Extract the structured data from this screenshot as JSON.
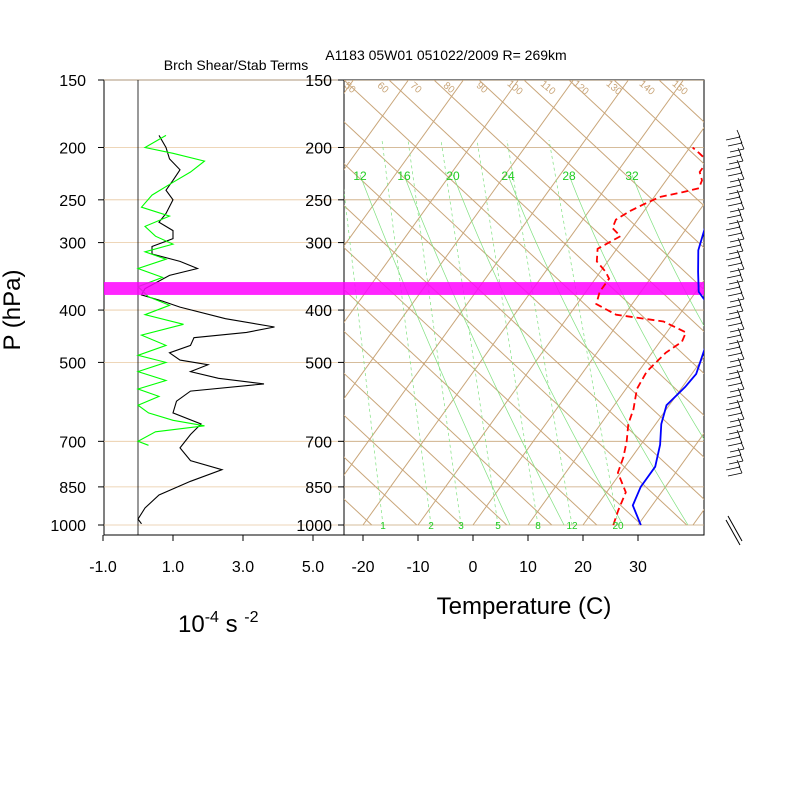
{
  "chart_data": [
    {
      "type": "line",
      "title": "Brch Shear/Stab Terms",
      "xlabel_base": "10",
      "xlabel_exp1": "-4",
      "xlabel_unit": " s ",
      "xlabel_exp2": "-2",
      "ylabel": "P (hPa)",
      "x_ticks": [
        "-1.0",
        "1.0",
        "3.0",
        "5.0"
      ],
      "xlim": [
        -1.0,
        5.0
      ],
      "y_ticks": [
        "150",
        "200",
        "250",
        "300",
        "400",
        "500",
        "700",
        "850",
        "1000"
      ],
      "y_scale": "log",
      "ylim": [
        1000,
        150
      ],
      "series": [
        {
          "color": "#000000",
          "points": [
            [
              0.6,
              190
            ],
            [
              0.8,
              200
            ],
            [
              0.9,
              210
            ],
            [
              1.2,
              220
            ],
            [
              1.0,
              230
            ],
            [
              0.8,
              240
            ],
            [
              1.0,
              250
            ],
            [
              0.8,
              265
            ],
            [
              0.6,
              275
            ],
            [
              1.0,
              285
            ],
            [
              1.0,
              295
            ],
            [
              0.4,
              305
            ],
            [
              0.4,
              315
            ],
            [
              1.2,
              325
            ],
            [
              1.7,
              335
            ],
            [
              0.9,
              345
            ],
            [
              0.2,
              365
            ],
            [
              0.1,
              375
            ],
            [
              0.7,
              385
            ],
            [
              1.2,
              395
            ],
            [
              2.5,
              415
            ],
            [
              3.9,
              430
            ],
            [
              3.1,
              440
            ],
            [
              1.6,
              450
            ],
            [
              1.5,
              465
            ],
            [
              0.9,
              480
            ],
            [
              1.2,
              495
            ],
            [
              2.0,
              505
            ],
            [
              1.5,
              520
            ],
            [
              2.3,
              535
            ],
            [
              3.6,
              548
            ],
            [
              1.5,
              565
            ],
            [
              1.1,
              590
            ],
            [
              1.0,
              620
            ],
            [
              1.8,
              650
            ],
            [
              1.5,
              680
            ],
            [
              1.2,
              720
            ],
            [
              1.5,
              760
            ],
            [
              2.4,
              790
            ],
            [
              1.5,
              830
            ],
            [
              0.6,
              880
            ],
            [
              0.2,
              930
            ],
            [
              0.0,
              975
            ],
            [
              0.1,
              995
            ]
          ]
        },
        {
          "color": "#00ff00",
          "points": [
            [
              0.8,
              190
            ],
            [
              0.2,
              200
            ],
            [
              1.0,
              205
            ],
            [
              1.9,
              212
            ],
            [
              1.5,
              222
            ],
            [
              1.0,
              232
            ],
            [
              0.4,
              245
            ],
            [
              0.1,
              258
            ],
            [
              0.9,
              268
            ],
            [
              0.2,
              280
            ],
            [
              0.5,
              292
            ],
            [
              1.0,
              302
            ],
            [
              0.2,
              312
            ],
            [
              0.8,
              322
            ],
            [
              0.0,
              335
            ],
            [
              0.7,
              348
            ],
            [
              0.0,
              362
            ],
            [
              0.3,
              378
            ],
            [
              0.9,
              392
            ],
            [
              0.2,
              408
            ],
            [
              1.3,
              425
            ],
            [
              0.1,
              445
            ],
            [
              0.8,
              465
            ],
            [
              0.0,
              485
            ],
            [
              0.8,
              500
            ],
            [
              0.0,
              520
            ],
            [
              0.8,
              540
            ],
            [
              0.0,
              560
            ],
            [
              0.6,
              578
            ],
            [
              0.0,
              600
            ],
            [
              0.3,
              620
            ],
            [
              1.0,
              640
            ],
            [
              1.9,
              655
            ],
            [
              0.5,
              672
            ],
            [
              0.0,
              700
            ],
            [
              0.3,
              712
            ]
          ]
        }
      ]
    },
    {
      "type": "line",
      "title": "A1183 05W01 051022/2009 R= 269km",
      "xlabel": "Temperature (C)",
      "x_ticks": [
        "-20",
        "-10",
        "0",
        "10",
        "20",
        "30"
      ],
      "xlim": [
        -23.5,
        42.5
      ],
      "y_ticks": [
        "150",
        "200",
        "250",
        "300",
        "400",
        "500",
        "700",
        "850",
        "1000"
      ],
      "y_scale": "log",
      "ylim": [
        1000,
        150
      ],
      "skew": "skew-T log-p",
      "mixing_ratio_labels": [
        "1",
        "2",
        "3",
        "5",
        "8",
        "12",
        "20"
      ],
      "theta_e_labels": [
        "12",
        "16",
        "20",
        "24",
        "28",
        "32"
      ],
      "dry_adiabat_labels": [
        "50",
        "60",
        "70",
        "80",
        "90",
        "100",
        "110",
        "120",
        "130",
        "140",
        "150"
      ],
      "highlight_band_hpa": [
        355,
        375
      ],
      "highlight_color": "#ff00ff",
      "series": [
        {
          "name": "",
          "color": "#0000ff",
          "points": [
            [
              30.5,
              1000
            ],
            [
              26.5,
              920
            ],
            [
              25.5,
              850
            ],
            [
              25.5,
              780
            ],
            [
              23.5,
              710
            ],
            [
              21.0,
              650
            ],
            [
              19.5,
              600
            ],
            [
              20.5,
              555
            ],
            [
              20.8,
              525
            ],
            [
              20.0,
              500
            ],
            [
              19.0,
              470
            ],
            [
              19.2,
              455
            ],
            [
              19.5,
              440
            ],
            [
              17.5,
              420
            ],
            [
              15.0,
              398
            ],
            [
              10.5,
              370
            ],
            [
              7.8,
              340
            ],
            [
              5.0,
              310
            ],
            [
              2.5,
              270
            ],
            [
              -0.5,
              240
            ],
            [
              -2.0,
              225
            ],
            [
              -5.0,
              200
            ],
            [
              -7.5,
              185
            ]
          ]
        },
        {
          "name": "",
          "color": "#ff0000",
          "dashed": true,
          "points": [
            [
              25.5,
              1000
            ],
            [
              24.5,
              940
            ],
            [
              23.5,
              870
            ],
            [
              19.5,
              800
            ],
            [
              18.5,
              750
            ],
            [
              17.0,
              700
            ],
            [
              15.0,
              650
            ],
            [
              14.0,
              610
            ],
            [
              12.0,
              560
            ],
            [
              11.5,
              520
            ],
            [
              12.5,
              480
            ],
            [
              14.0,
              458
            ],
            [
              13.5,
              440
            ],
            [
              8.0,
              420
            ],
            [
              -1.5,
              408
            ],
            [
              -6.5,
              390
            ],
            [
              -7.5,
              370
            ],
            [
              -7.5,
              350
            ],
            [
              -9.0,
              340
            ],
            [
              -12.0,
              325
            ],
            [
              -13.5,
              308
            ],
            [
              -11.0,
              292
            ],
            [
              -13.5,
              282
            ],
            [
              -14.0,
              272
            ],
            [
              -12.5,
              262
            ],
            [
              -11.0,
              255
            ],
            [
              -9.0,
              247
            ],
            [
              -5.5,
              242
            ],
            [
              -3.0,
              238
            ],
            [
              -3.5,
              230
            ],
            [
              -5.0,
              222
            ],
            [
              -5.0,
              212
            ],
            [
              -7.5,
              205
            ],
            [
              -9.5,
              200
            ]
          ]
        }
      ],
      "wind_barbs": "column of wind barbs at right edge from 150 to 1000 hPa"
    }
  ]
}
